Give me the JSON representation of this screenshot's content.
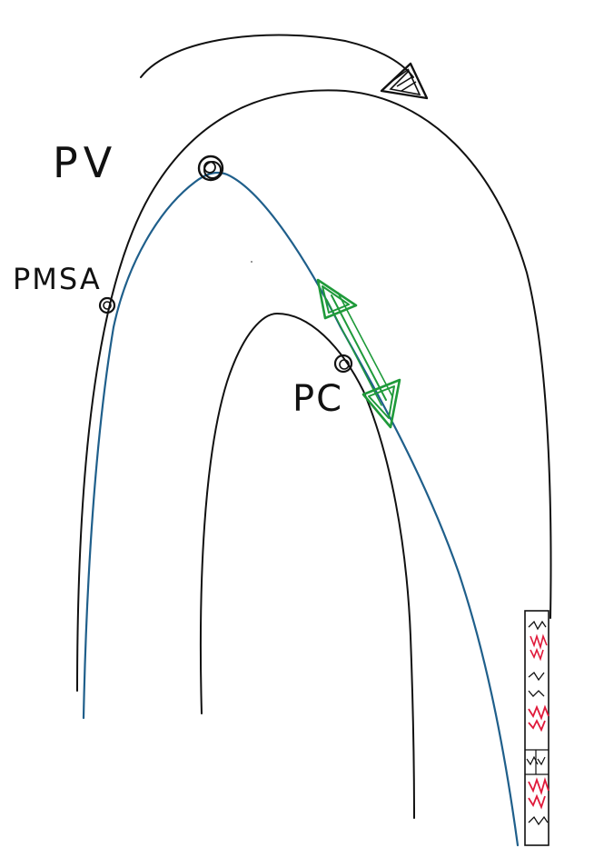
{
  "labels": {
    "pv": "PV",
    "pmsa": "PMSA",
    "pc": "PC"
  },
  "colors": {
    "ink": "#111111",
    "trajectory": "#1f5f8b",
    "double_arrow": "#1f9a3a",
    "hatch_red": "#e0193a"
  },
  "icons": {
    "direction_arrow": "curved-arrow-icon",
    "range_arrow": "double-arrow-icon"
  }
}
